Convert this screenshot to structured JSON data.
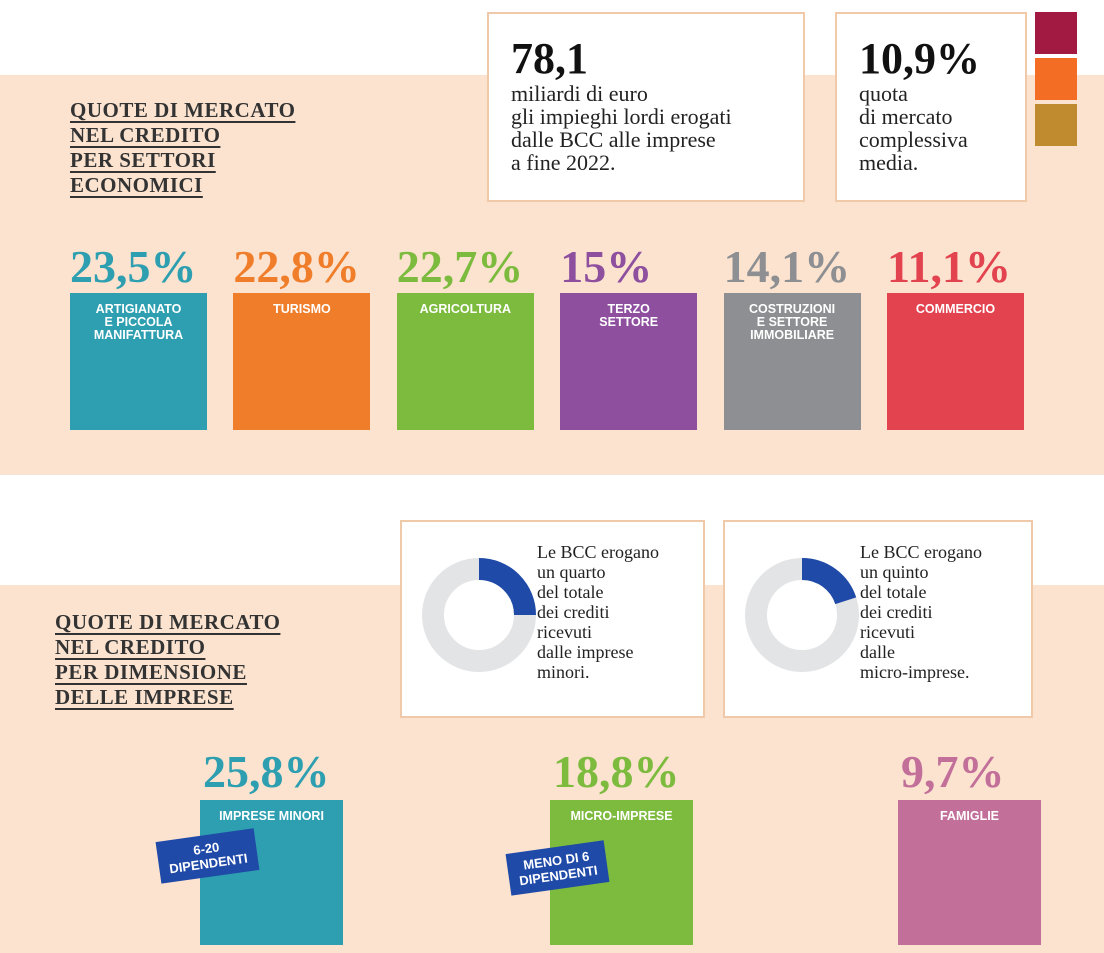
{
  "section1": {
    "title_lines": [
      "QUOTE DI MERCATO",
      "NEL CREDITO",
      "PER SETTORI",
      "ECONOMICI"
    ],
    "stats": [
      {
        "value": "78,1",
        "text_lines": [
          "miliardi di euro",
          "gli impieghi lordi erogati",
          "dalle BCC alle imprese",
          "a fine 2022."
        ]
      },
      {
        "value": "10,9%",
        "text_lines": [
          "quota",
          "di mercato",
          "complessiva",
          "media."
        ]
      }
    ],
    "sectors": [
      {
        "percent": "23,5%",
        "label_lines": [
          "ARTIGIANATO",
          "E PICCOLA",
          "MANIFATTURA"
        ],
        "color": "#2e9fb0"
      },
      {
        "percent": "22,8%",
        "label_lines": [
          "TURISMO"
        ],
        "color": "#ef7d2a"
      },
      {
        "percent": "22,7%",
        "label_lines": [
          "AGRICOLTURA"
        ],
        "color": "#7dbb3e"
      },
      {
        "percent": "15%",
        "label_lines": [
          "TERZO",
          "SETTORE"
        ],
        "color": "#8e4f9f"
      },
      {
        "percent": "14,1%",
        "label_lines": [
          "COSTRUZIONI",
          "E SETTORE",
          "IMMOBILIARE"
        ],
        "color": "#8e8f92"
      },
      {
        "percent": "11,1%",
        "label_lines": [
          "COMMERCIO"
        ],
        "color": "#e3434f"
      }
    ]
  },
  "section2": {
    "title_lines": [
      "QUOTE DI MERCATO",
      "NEL CREDITO",
      "PER DIMENSIONE",
      "DELLE IMPRESE"
    ],
    "donuts": [
      {
        "share": 25,
        "text_lines": [
          "Le BCC erogano",
          "un quarto",
          "del totale",
          "dei crediti",
          "ricevuti",
          "dalle imprese",
          "minori."
        ]
      },
      {
        "share": 20,
        "text_lines": [
          "Le BCC erogano",
          "un quinto",
          "del totale",
          "dei crediti",
          "ricevuti",
          "dalle",
          "micro-imprese."
        ]
      }
    ],
    "groups": [
      {
        "percent": "25,8%",
        "label": "IMPRESE MINORI",
        "tag_lines": [
          "6-20",
          "DIPENDENTI"
        ],
        "color": "#2e9fb0"
      },
      {
        "percent": "18,8%",
        "label": "MICRO-IMPRESE",
        "tag_lines": [
          "MENO DI 6",
          "DIPENDENTI"
        ],
        "color": "#7dbb3e"
      },
      {
        "percent": "9,7%",
        "label": "FAMIGLIE",
        "color": "#c2709a"
      }
    ]
  }
}
